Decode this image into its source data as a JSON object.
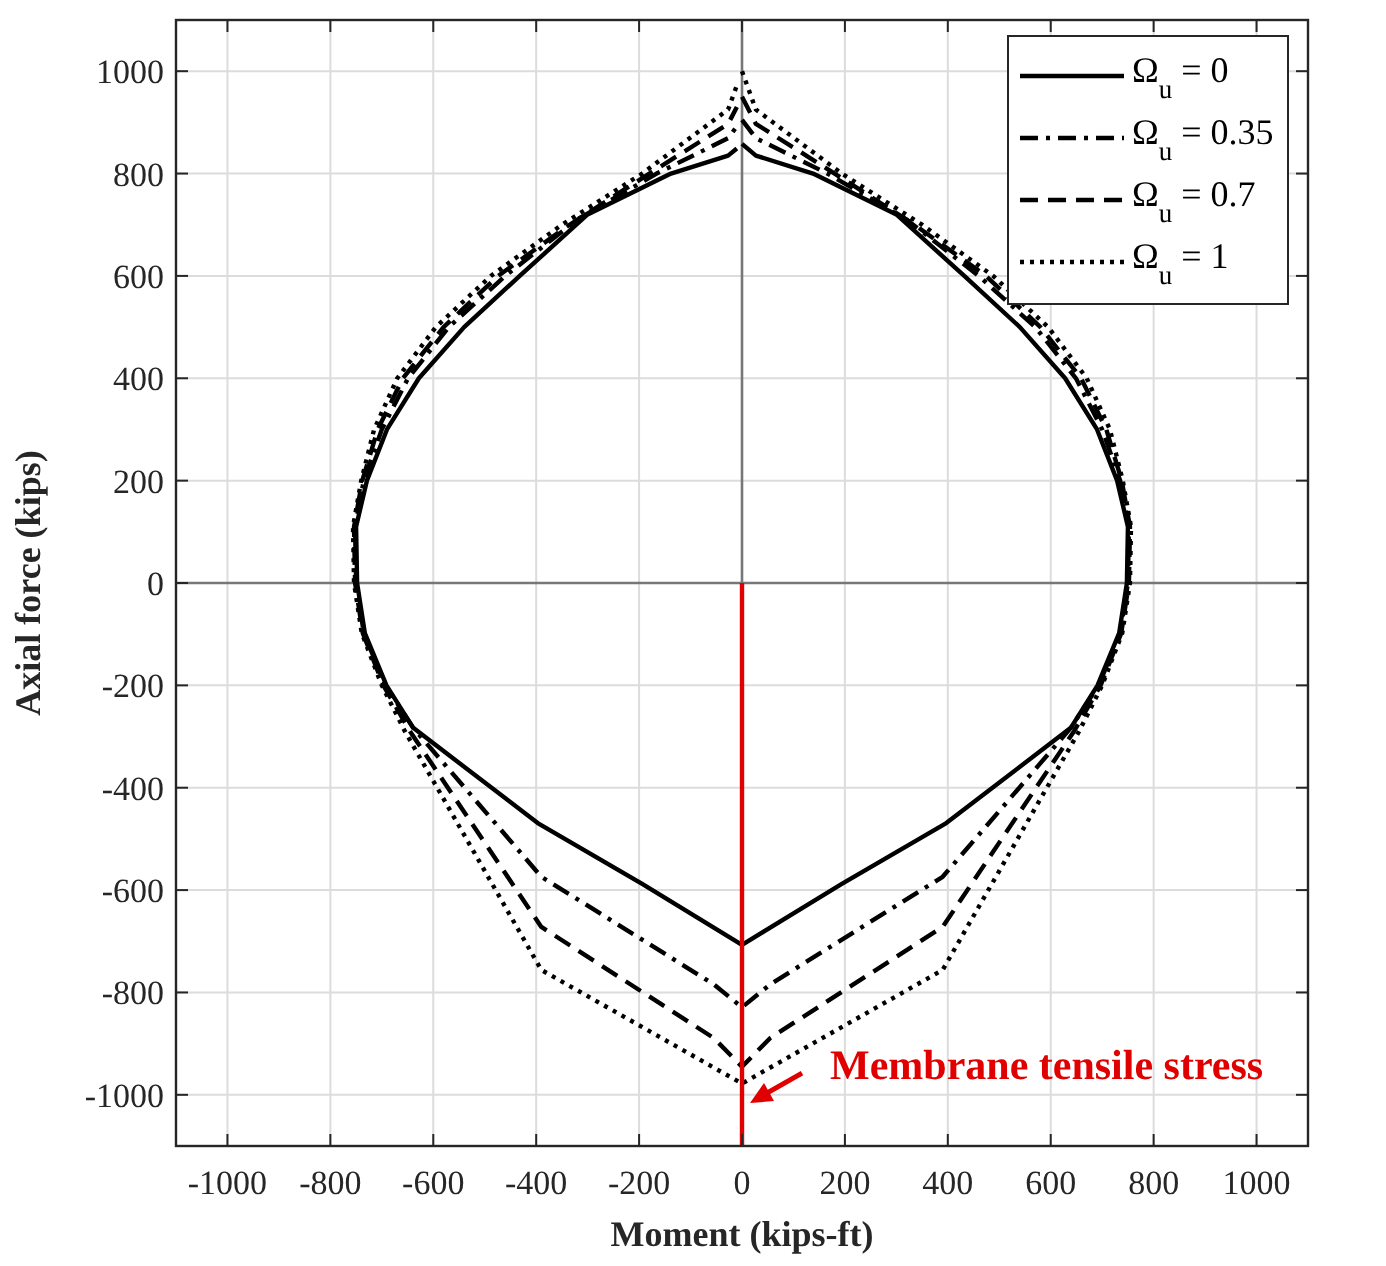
{
  "chart_data": {
    "type": "line",
    "xlabel": "Moment (kips-ft)",
    "ylabel": "Axial force (kips)",
    "xlim": [
      -1100,
      1100
    ],
    "ylim": [
      -1100,
      1100
    ],
    "xticks": [
      -1000,
      -800,
      -600,
      -400,
      -200,
      0,
      200,
      400,
      600,
      800,
      1000
    ],
    "yticks": [
      -1000,
      -800,
      -600,
      -400,
      -200,
      0,
      200,
      400,
      600,
      800,
      1000
    ],
    "grid": true,
    "legend": "top right",
    "marker": "none",
    "annotations": [
      {
        "text": "Membrane tensile stress",
        "x": 0,
        "y": -1020
      }
    ],
    "series": [
      {
        "name": "Ω$_{u}$ = 0",
        "color": "#000000",
        "line_style": "solid",
        "x": [
          0,
          27,
          138,
          300,
          432,
          540,
          628,
          690,
          729,
          750,
          748,
          733,
          691,
          639,
          397,
          194,
          0,
          -194,
          -397,
          -639,
          -691,
          -733,
          -748,
          -750,
          -729,
          -690,
          -628,
          -540,
          -432,
          -300,
          -138,
          -27,
          -10
        ],
        "values": [
          858,
          835,
          800,
          720,
          600,
          500,
          400,
          300,
          200,
          110,
          0,
          -98,
          -200,
          -283,
          -469,
          -588,
          -707,
          -588,
          -469,
          -283,
          -200,
          -98,
          0,
          110,
          200,
          300,
          400,
          500,
          600,
          720,
          800,
          835,
          849
        ]
      },
      {
        "name": "Ω$_{u}$ = 0.35",
        "color": "#000000",
        "line_style": "dashdot",
        "x": [
          0,
          27,
          166,
          320,
          460,
          570,
          649,
          700,
          735,
          752,
          750,
          735,
          693,
          639,
          390,
          55,
          0,
          -55,
          -390,
          -639,
          -693,
          -735,
          -750,
          -752,
          -735,
          -700,
          -649,
          -570,
          -460,
          -320,
          -166,
          -27,
          -10
        ],
        "values": [
          905,
          869,
          800,
          710,
          600,
          500,
          400,
          300,
          200,
          110,
          0,
          -98,
          -200,
          -283,
          -574,
          -784,
          -829,
          -784,
          -574,
          -283,
          -200,
          -98,
          0,
          110,
          200,
          300,
          400,
          500,
          600,
          710,
          800,
          869,
          892
        ]
      },
      {
        "name": "Ω$_{u}$ = 0.7",
        "color": "#000000",
        "line_style": "dashed",
        "x": [
          0,
          27,
          180,
          335,
          474,
          580,
          659,
          708,
          738,
          754,
          752,
          737,
          697,
          645,
          390,
          55,
          0,
          -55,
          -390,
          -645,
          -697,
          -737,
          -752,
          -754,
          -738,
          -708,
          -659,
          -580,
          -474,
          -335,
          -180,
          -27,
          -10
        ],
        "values": [
          950,
          897,
          800,
          700,
          600,
          500,
          400,
          300,
          200,
          110,
          0,
          -98,
          -200,
          -290,
          -672,
          -889,
          -945,
          -889,
          -672,
          -290,
          -200,
          -98,
          0,
          110,
          200,
          300,
          400,
          500,
          600,
          700,
          800,
          897,
          930
        ]
      },
      {
        "name": "Ω$_{u}$ = 1",
        "color": "#000000",
        "line_style": "dotted",
        "x": [
          0,
          27,
          194,
          350,
          488,
          595,
          670,
          715,
          740,
          756,
          754,
          739,
          700,
          655,
          390,
          0,
          -390,
          -655,
          -700,
          -739,
          -754,
          -756,
          -740,
          -715,
          -670,
          -595,
          -488,
          -350,
          -194,
          -27,
          -10
        ],
        "values": [
          1000,
          925,
          800,
          700,
          600,
          500,
          400,
          300,
          200,
          110,
          0,
          -98,
          -200,
          -290,
          -756,
          -978,
          -756,
          -290,
          -200,
          -98,
          0,
          110,
          200,
          300,
          400,
          500,
          600,
          700,
          800,
          925,
          972
        ]
      },
      {
        "color": "#e00000",
        "line_style": "solid",
        "x": [
          0,
          0
        ],
        "values": [
          0,
          -1100
        ]
      }
    ]
  }
}
